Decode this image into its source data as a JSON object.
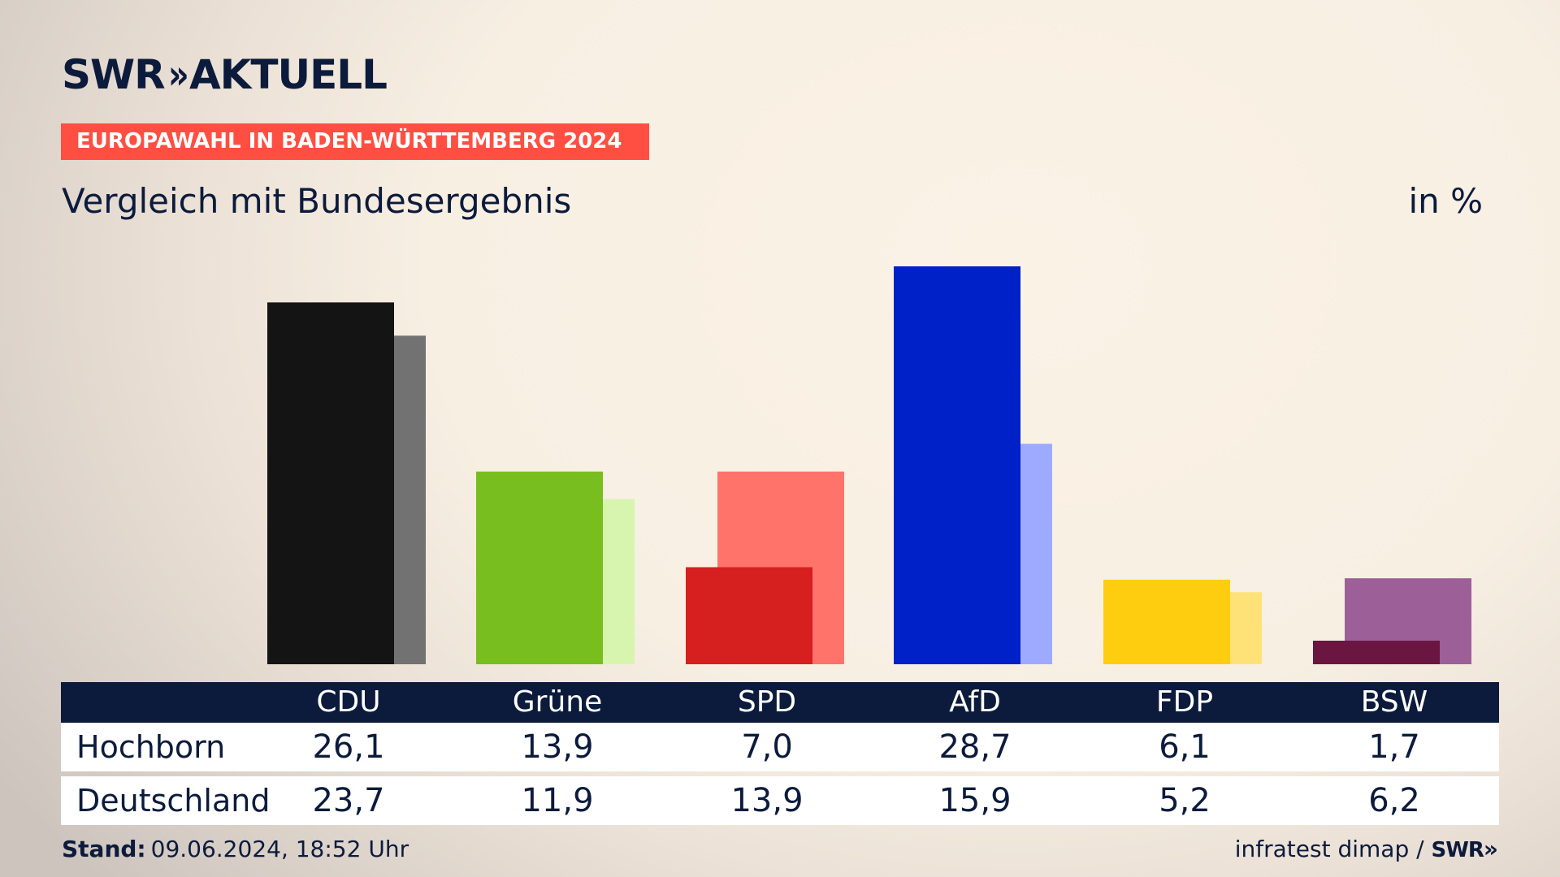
{
  "brand": {
    "logo_part1": "SWR",
    "logo_chevrons": "»",
    "logo_part2": "AKTUELL"
  },
  "kicker": "EUROPAWAHL IN BADEN-WÜRTTEMBERG 2024",
  "subtitle": "Vergleich mit Bundesergebnis",
  "unit": "in %",
  "table": {
    "rows": [
      {
        "label": "Hochborn",
        "values": [
          "26,1",
          "13,9",
          "7,0",
          "28,7",
          "6,1",
          "1,7"
        ]
      },
      {
        "label": "Deutschland",
        "values": [
          "23,7",
          "11,9",
          "13,9",
          "15,9",
          "5,2",
          "6,2"
        ]
      }
    ]
  },
  "footer": {
    "stand_label": "Stand:",
    "stand_value": "09.06.2024, 18:52 Uhr",
    "source": "infratest dimap /",
    "source_logo": "SWR"
  },
  "chart_data": {
    "type": "bar",
    "categories": [
      "CDU",
      "Grüne",
      "SPD",
      "AfD",
      "FDP",
      "BSW"
    ],
    "series": [
      {
        "name": "Hochborn",
        "values": [
          26.1,
          13.9,
          7.0,
          28.7,
          6.1,
          1.7
        ]
      },
      {
        "name": "Deutschland",
        "values": [
          23.7,
          11.9,
          13.9,
          15.9,
          5.2,
          6.2
        ]
      }
    ],
    "colors": {
      "primary": [
        "#141414",
        "#78be1e",
        "#d61f1f",
        "#0020c8",
        "#ffcd0f",
        "#6b1640"
      ],
      "secondary": [
        "#727272",
        "#d7f5ae",
        "#ff736b",
        "#9eaaff",
        "#ffe277",
        "#9c5f98"
      ]
    },
    "ylim": [
      0,
      28.7
    ],
    "grid": false
  }
}
